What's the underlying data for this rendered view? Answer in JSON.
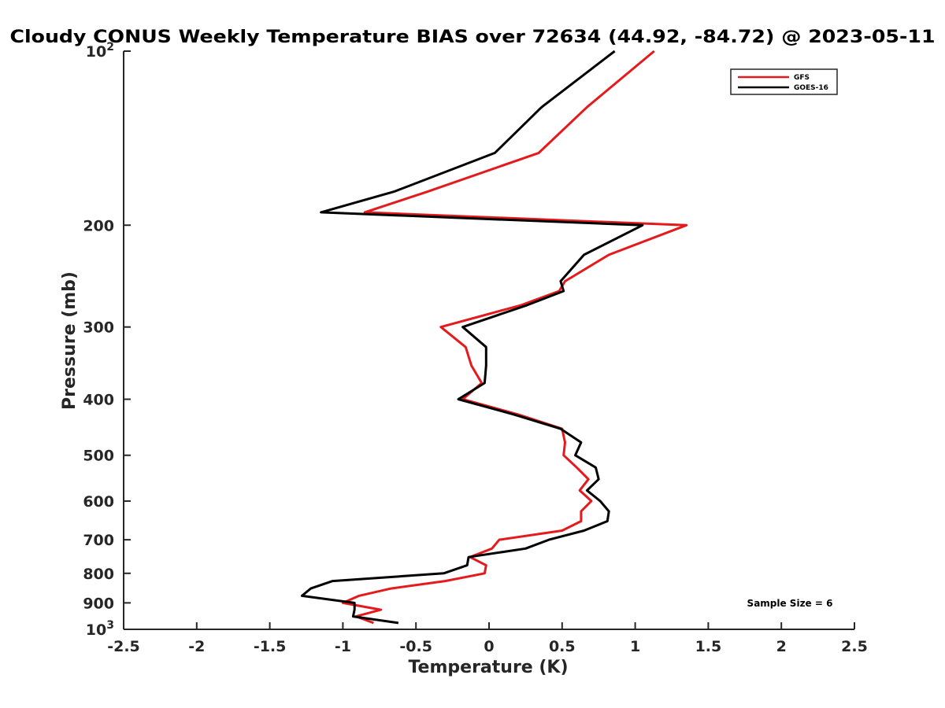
{
  "chart_data": {
    "type": "line",
    "title": "Cloudy CONUS Weekly Temperature BIAS over 72634 (44.92, -84.72) @ 2023-05-11",
    "xlabel": "Temperature (K)",
    "ylabel": "Pressure (mb)",
    "xlim": [
      -2.5,
      2.5
    ],
    "ylim": [
      1000,
      100
    ],
    "y_scale": "log",
    "y_reversed": true,
    "grid": false,
    "legend_position": "top-right",
    "x_ticks": [
      "-2.5",
      "-2",
      "-1.5",
      "-1",
      "-0.5",
      "0",
      "0.5",
      "1",
      "1.5",
      "2",
      "2.5"
    ],
    "y_ticks": [
      {
        "value": 100,
        "base": "10",
        "exp": "2"
      },
      {
        "value": 200,
        "label": "200"
      },
      {
        "value": 300,
        "label": "300"
      },
      {
        "value": 400,
        "label": "400"
      },
      {
        "value": 500,
        "label": "500"
      },
      {
        "value": 600,
        "label": "600"
      },
      {
        "value": 700,
        "label": "700"
      },
      {
        "value": 800,
        "label": "800"
      },
      {
        "value": 900,
        "label": "900"
      },
      {
        "value": 1000,
        "base": "10",
        "exp": "3"
      }
    ],
    "annotation": "Sample Size = 6",
    "series": [
      {
        "name": "GFS",
        "color": "#e41a1c",
        "points": [
          [
            1.13,
            100
          ],
          [
            0.67,
            125
          ],
          [
            0.34,
            150
          ],
          [
            -0.42,
            175
          ],
          [
            -0.85,
            190
          ],
          [
            1.35,
            200
          ],
          [
            0.82,
            225
          ],
          [
            0.52,
            250
          ],
          [
            0.48,
            260
          ],
          [
            0.22,
            275
          ],
          [
            -0.33,
            300
          ],
          [
            -0.16,
            325
          ],
          [
            -0.12,
            350
          ],
          [
            -0.05,
            375
          ],
          [
            -0.18,
            400
          ],
          [
            0.2,
            425
          ],
          [
            0.5,
            450
          ],
          [
            0.52,
            475
          ],
          [
            0.51,
            500
          ],
          [
            0.6,
            525
          ],
          [
            0.68,
            550
          ],
          [
            0.62,
            575
          ],
          [
            0.7,
            600
          ],
          [
            0.63,
            625
          ],
          [
            0.63,
            650
          ],
          [
            0.5,
            675
          ],
          [
            0.07,
            700
          ],
          [
            0.02,
            725
          ],
          [
            -0.13,
            750
          ],
          [
            -0.02,
            775
          ],
          [
            -0.03,
            800
          ],
          [
            -0.3,
            825
          ],
          [
            -0.67,
            850
          ],
          [
            -0.89,
            875
          ],
          [
            -1.0,
            900
          ],
          [
            -0.74,
            925
          ],
          [
            -0.91,
            950
          ],
          [
            -0.79,
            975
          ]
        ]
      },
      {
        "name": "GOES-16",
        "color": "#000000",
        "points": [
          [
            0.86,
            100
          ],
          [
            0.36,
            125
          ],
          [
            0.04,
            150
          ],
          [
            -0.65,
            175
          ],
          [
            -1.15,
            190
          ],
          [
            1.05,
            200
          ],
          [
            0.65,
            225
          ],
          [
            0.49,
            250
          ],
          [
            0.51,
            260
          ],
          [
            0.26,
            275
          ],
          [
            -0.18,
            300
          ],
          [
            -0.02,
            325
          ],
          [
            -0.02,
            350
          ],
          [
            -0.03,
            375
          ],
          [
            -0.21,
            400
          ],
          [
            0.17,
            425
          ],
          [
            0.49,
            450
          ],
          [
            0.63,
            475
          ],
          [
            0.59,
            500
          ],
          [
            0.73,
            525
          ],
          [
            0.75,
            550
          ],
          [
            0.67,
            575
          ],
          [
            0.76,
            600
          ],
          [
            0.82,
            625
          ],
          [
            0.81,
            650
          ],
          [
            0.65,
            675
          ],
          [
            0.41,
            700
          ],
          [
            0.25,
            725
          ],
          [
            -0.14,
            750
          ],
          [
            -0.15,
            775
          ],
          [
            -0.31,
            800
          ],
          [
            -1.07,
            825
          ],
          [
            -1.22,
            850
          ],
          [
            -1.28,
            875
          ],
          [
            -0.92,
            900
          ],
          [
            -0.92,
            925
          ],
          [
            -0.93,
            950
          ],
          [
            -0.62,
            975
          ]
        ]
      }
    ]
  }
}
